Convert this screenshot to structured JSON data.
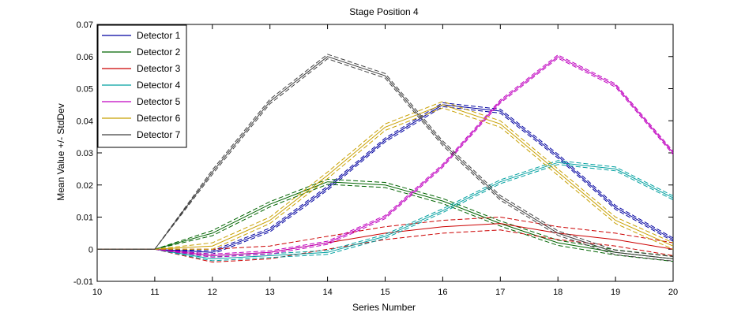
{
  "chart_data": {
    "type": "line",
    "title": "Stage Position 4",
    "xlabel": "Series Number",
    "ylabel": "Mean Value +/- StdDev",
    "xlim": [
      10,
      20
    ],
    "ylim": [
      -0.01,
      0.07
    ],
    "xticks": [
      10,
      11,
      12,
      13,
      14,
      15,
      16,
      17,
      18,
      19,
      20
    ],
    "yticks": [
      -0.01,
      0,
      0.01,
      0.02,
      0.03,
      0.04,
      0.05,
      0.06,
      0.07
    ],
    "ytick_labels": [
      "-0.01",
      "0",
      "0.01",
      "0.02",
      "0.03",
      "0.04",
      "0.05",
      "0.06",
      "0.07"
    ],
    "grid": false,
    "legend_position": "top-left",
    "series_style": "mean line with dashed +/- stddev lines",
    "x": [
      10,
      11,
      12,
      13,
      14,
      15,
      16,
      17,
      18,
      19,
      20
    ],
    "series": [
      {
        "name": "Detector 1",
        "color": "#0000a0",
        "values": [
          0,
          0,
          -0.001,
          0.006,
          0.019,
          0.034,
          0.045,
          0.043,
          0.029,
          0.013,
          0.003
        ],
        "std": [
          0,
          0,
          0.0005,
          0.0006,
          0.0006,
          0.0006,
          0.0006,
          0.0006,
          0.0006,
          0.0006,
          0.0005
        ]
      },
      {
        "name": "Detector 2",
        "color": "#006400",
        "values": [
          0,
          0,
          0.005,
          0.014,
          0.021,
          0.02,
          0.015,
          0.008,
          0.002,
          -0.001,
          -0.003
        ],
        "std": [
          0,
          0,
          0.0008,
          0.0008,
          0.0008,
          0.0008,
          0.0008,
          0.0008,
          0.0008,
          0.0008,
          0.0008
        ]
      },
      {
        "name": "Detector 3",
        "color": "#cc0000",
        "values": [
          0,
          0,
          -0.002,
          -0.001,
          0.002,
          0.005,
          0.007,
          0.008,
          0.005,
          0.003,
          0
        ],
        "std": [
          0,
          0,
          0.002,
          0.002,
          0.002,
          0.002,
          0.002,
          0.002,
          0.002,
          0.002,
          0.002
        ]
      },
      {
        "name": "Detector 4",
        "color": "#00a0a0",
        "values": [
          0,
          0,
          -0.003,
          -0.002,
          -0.001,
          0.004,
          0.012,
          0.021,
          0.027,
          0.025,
          0.016
        ],
        "std": [
          0,
          0,
          0.0006,
          0.0006,
          0.0006,
          0.0006,
          0.0006,
          0.0006,
          0.0006,
          0.0006,
          0.0006
        ]
      },
      {
        "name": "Detector 5",
        "color": "#c000c0",
        "values": [
          0,
          0,
          -0.002,
          -0.001,
          0.002,
          0.01,
          0.026,
          0.046,
          0.06,
          0.051,
          0.03
        ],
        "std": [
          0,
          0,
          0.0005,
          0.0005,
          0.0005,
          0.0005,
          0.0005,
          0.0005,
          0.0005,
          0.0005,
          0.0005
        ]
      },
      {
        "name": "Detector 6",
        "color": "#c8a000",
        "values": [
          0,
          0,
          0.001,
          0.009,
          0.023,
          0.038,
          0.045,
          0.039,
          0.024,
          0.009,
          0.001
        ],
        "std": [
          0,
          0,
          0.001,
          0.001,
          0.001,
          0.001,
          0.001,
          0.001,
          0.001,
          0.001,
          0.001
        ]
      },
      {
        "name": "Detector 7",
        "color": "#404040",
        "values": [
          0,
          0,
          0.024,
          0.046,
          0.06,
          0.054,
          0.033,
          0.016,
          0.005,
          -0.001,
          -0.003
        ],
        "std": [
          0,
          0,
          0.0007,
          0.0007,
          0.0007,
          0.0007,
          0.0007,
          0.0007,
          0.0007,
          0.0007,
          0.0007
        ]
      }
    ]
  }
}
